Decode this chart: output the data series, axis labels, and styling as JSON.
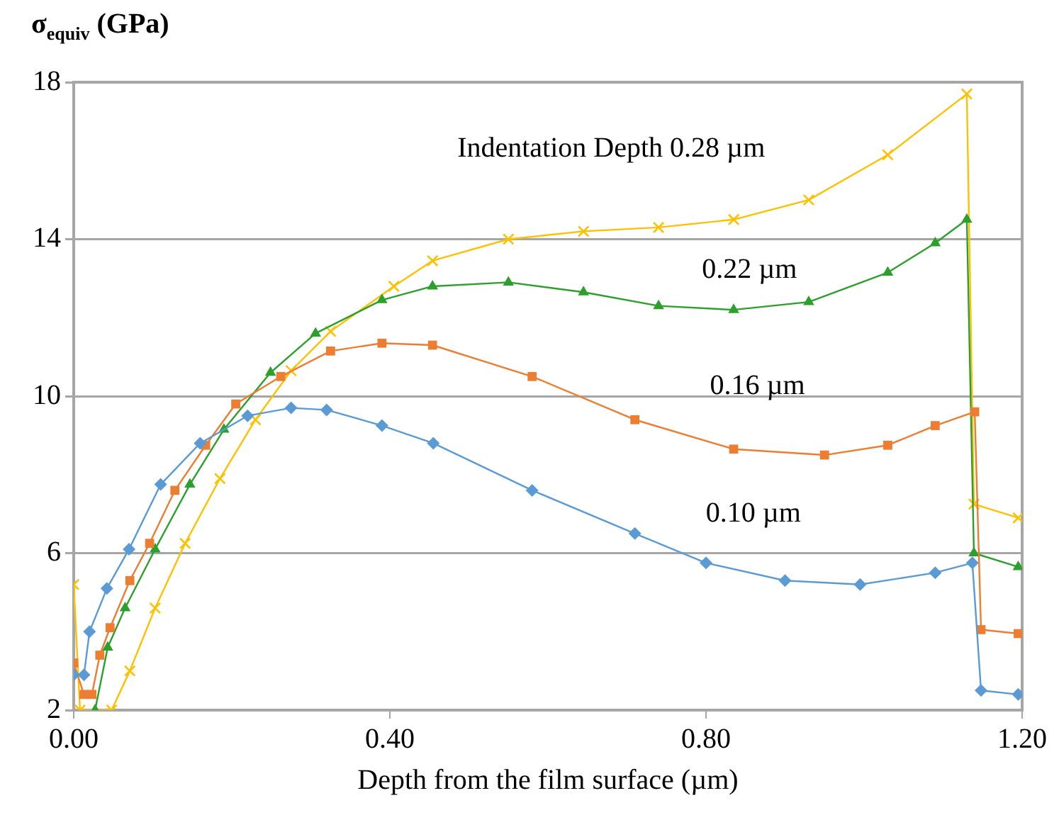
{
  "chart_data": {
    "type": "line",
    "ylabel": "σ$_{equiv}$ (GPa)",
    "xlabel": "Depth from the film surface (µm)",
    "xlim": [
      0,
      1.2
    ],
    "xticks": [
      {
        "value": 0,
        "label": "0.00"
      },
      {
        "value": 0.4,
        "label": "0.40"
      },
      {
        "value": 0.8,
        "label": "0.80"
      },
      {
        "value": 1.2,
        "label": "1.20"
      }
    ],
    "ylim": [
      2,
      18
    ],
    "yticks": [
      2,
      6,
      10,
      14,
      18
    ],
    "grid": "y",
    "legend": false,
    "line_style": "solid",
    "series": [
      {
        "name": "0.10 µm",
        "color": "#5b9bd5",
        "marker": "diamond",
        "x": [
          0,
          0.013,
          0.02,
          0.042,
          0.07,
          0.11,
          0.16,
          0.22,
          0.275,
          0.32,
          0.39,
          0.455,
          0.58,
          0.71,
          0.8,
          0.9,
          0.995,
          1.09,
          1.137,
          1.148,
          1.195
        ],
        "values": [
          2.9,
          2.9,
          4.0,
          5.1,
          6.1,
          7.75,
          8.8,
          9.5,
          9.7,
          9.65,
          9.25,
          8.8,
          7.6,
          6.5,
          5.75,
          5.3,
          5.2,
          5.5,
          5.75,
          2.5,
          2.4
        ]
      },
      {
        "name": "0.16 µm",
        "color": "#ed7d31",
        "marker": "square",
        "x": [
          0,
          0.013,
          0.023,
          0.033,
          0.046,
          0.071,
          0.096,
          0.128,
          0.167,
          0.205,
          0.262,
          0.325,
          0.39,
          0.454,
          0.58,
          0.71,
          0.835,
          0.95,
          1.03,
          1.09,
          1.14,
          1.148,
          1.195
        ],
        "values": [
          3.2,
          2.4,
          2.4,
          3.4,
          4.1,
          5.3,
          6.25,
          7.6,
          8.75,
          9.8,
          10.5,
          11.15,
          11.35,
          11.3,
          10.5,
          9.4,
          8.65,
          8.5,
          8.75,
          9.25,
          9.6,
          4.05,
          3.95
        ]
      },
      {
        "name": "0.22 µm",
        "color": "#2ca02c",
        "marker": "triangle",
        "x": [
          0.027,
          0.043,
          0.065,
          0.103,
          0.147,
          0.19,
          0.249,
          0.306,
          0.39,
          0.454,
          0.55,
          0.645,
          0.74,
          0.835,
          0.93,
          1.03,
          1.09,
          1.13,
          1.139,
          1.195
        ],
        "values": [
          2.0,
          3.6,
          4.6,
          6.1,
          7.75,
          9.15,
          10.6,
          11.6,
          12.45,
          12.8,
          12.9,
          12.65,
          12.3,
          12.2,
          12.4,
          13.15,
          13.9,
          14.5,
          6.0,
          5.65
        ]
      },
      {
        "name": "Indentation Depth 0.28 µm",
        "color": "#ffc000",
        "marker": "cross",
        "x": [
          0,
          0.008,
          0.048,
          0.071,
          0.103,
          0.141,
          0.185,
          0.23,
          0.275,
          0.325,
          0.405,
          0.454,
          0.55,
          0.645,
          0.74,
          0.835,
          0.93,
          1.03,
          1.13,
          1.139,
          1.195
        ],
        "values": [
          5.2,
          2.0,
          2.0,
          3.0,
          4.6,
          6.25,
          7.9,
          9.4,
          10.65,
          11.65,
          12.8,
          13.45,
          14.0,
          14.2,
          14.3,
          14.5,
          15.0,
          16.15,
          17.7,
          7.25,
          6.9
        ]
      }
    ]
  }
}
